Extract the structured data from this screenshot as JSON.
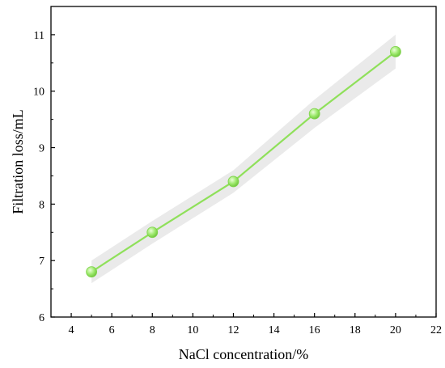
{
  "chart_data": {
    "type": "line",
    "title": "",
    "xlabel": "NaCl concentration/%",
    "ylabel": "Filtration loss/mL",
    "xlim": [
      3,
      22
    ],
    "ylim": [
      6,
      11.5
    ],
    "xticks": [
      4,
      6,
      8,
      10,
      12,
      14,
      16,
      18,
      20,
      22
    ],
    "yticks": [
      6,
      7,
      8,
      9,
      10,
      11
    ],
    "grid": false,
    "legend": "none",
    "series": [
      {
        "x": [
          5,
          8,
          12,
          16,
          20
        ],
        "values": [
          6.8,
          7.5,
          8.4,
          9.6,
          10.7
        ],
        "band_upper": [
          7.0,
          7.7,
          8.6,
          9.85,
          11.0
        ],
        "band_lower": [
          6.6,
          7.3,
          8.2,
          9.35,
          10.4
        ],
        "color": "#8fe05a",
        "marker_color": "#9be86a",
        "band_color": "#dcdcdc"
      }
    ]
  }
}
